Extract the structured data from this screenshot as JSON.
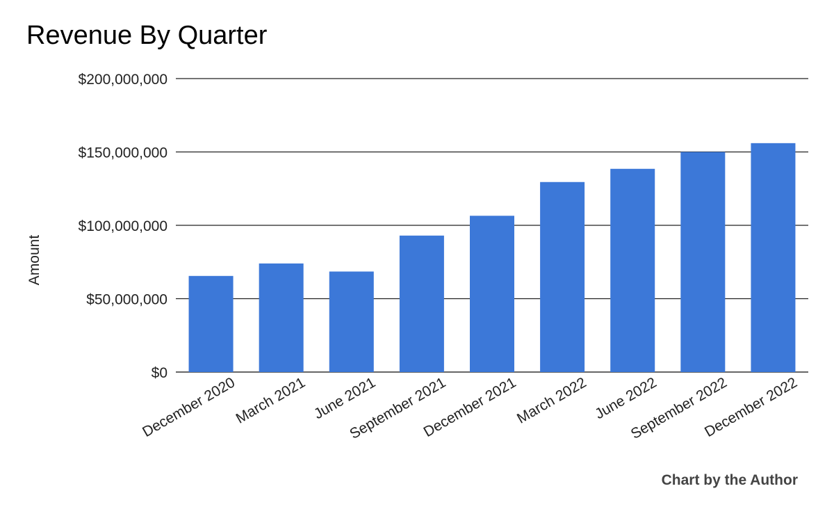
{
  "chart_data": {
    "type": "bar",
    "title": "Revenue By Quarter",
    "xlabel": "",
    "ylabel": "Amount",
    "credit": "Chart by the Author",
    "categories": [
      "December 2020",
      "March 2021",
      "June 2021",
      "September 2021",
      "December 2021",
      "March 2022",
      "June 2022",
      "September 2022",
      "December 2022"
    ],
    "values": [
      65500000,
      74000000,
      68500000,
      93000000,
      106500000,
      129500000,
      138500000,
      150000000,
      156000000
    ],
    "ylim": [
      0,
      200000000
    ],
    "yticks": [
      0,
      50000000,
      100000000,
      150000000,
      200000000
    ],
    "ytick_labels": [
      "$0",
      "$50,000,000",
      "$100,000,000",
      "$150,000,000",
      "$200,000,000"
    ],
    "grid": true,
    "legend": "none",
    "colors": {
      "bar": "#3c78d8",
      "grid": "#222222",
      "text": "#222222"
    }
  }
}
